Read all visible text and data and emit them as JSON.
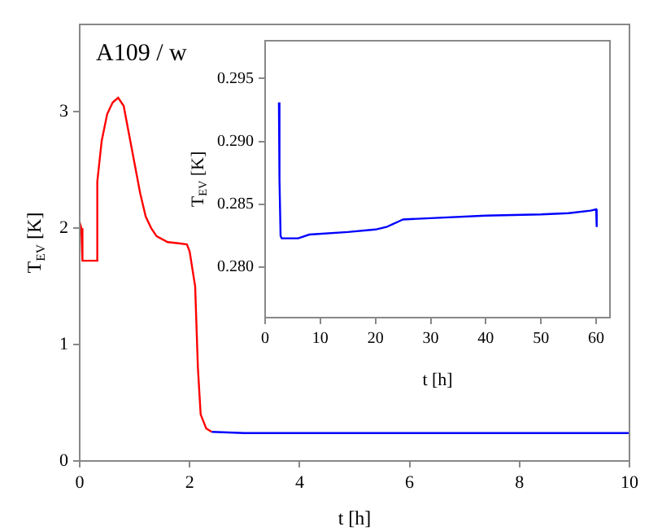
{
  "chart_data": [
    {
      "type": "line",
      "xlabel": "t [h]",
      "ylabel": "T$_{EV}$ [K]",
      "annotations": [
        "A109 / w"
      ],
      "xlim": [
        0,
        10
      ],
      "ylim": [
        0,
        3.75
      ],
      "xticks": [
        0,
        2,
        4,
        6,
        8,
        10
      ],
      "yticks": [
        0,
        1,
        2,
        3
      ],
      "series": [
        {
          "color": "#ff0000",
          "x": [
            0,
            0.03,
            0.05,
            0.3,
            0.32,
            0.4,
            0.5,
            0.6,
            0.7,
            0.8,
            0.9,
            1.0,
            1.1,
            1.2,
            1.3,
            1.4,
            1.6,
            1.8,
            1.95,
            2.0,
            2.1,
            2.15,
            2.2,
            2.3,
            2.4
          ],
          "values": [
            2.05,
            2.0,
            1.72,
            1.72,
            2.4,
            2.75,
            2.98,
            3.08,
            3.12,
            3.05,
            2.8,
            2.55,
            2.3,
            2.1,
            2.0,
            1.93,
            1.88,
            1.87,
            1.86,
            1.8,
            1.5,
            0.8,
            0.4,
            0.28,
            0.25
          ]
        },
        {
          "color": "#0000ff",
          "x": [
            2.4,
            3,
            10
          ],
          "values": [
            0.25,
            0.24,
            0.24
          ]
        }
      ]
    },
    {
      "type": "line",
      "xlabel": "t [h]",
      "ylabel": "T$_{EV}$ [K]",
      "xlim": [
        0,
        62.5
      ],
      "ylim": [
        0.276,
        0.298
      ],
      "xticks": [
        0,
        10,
        20,
        30,
        40,
        50,
        60
      ],
      "yticks": [
        {
          "value": 0.28,
          "label": "0.280"
        },
        0.285,
        {
          "value": 0.29,
          "label": "0.290"
        },
        0.295
      ],
      "series": [
        {
          "color": "#0000ff",
          "x": [
            2.5,
            2.6,
            2.8,
            3,
            6,
            8,
            15,
            20,
            22,
            23,
            24.5,
            25,
            30,
            40,
            50,
            55,
            59,
            60,
            60.1
          ],
          "values": [
            0.2931,
            0.287,
            0.2825,
            0.2823,
            0.2823,
            0.2826,
            0.2828,
            0.283,
            0.2832,
            0.2834,
            0.2837,
            0.2838,
            0.2839,
            0.2841,
            0.2842,
            0.2843,
            0.2845,
            0.2846,
            0.2832
          ]
        }
      ]
    }
  ]
}
